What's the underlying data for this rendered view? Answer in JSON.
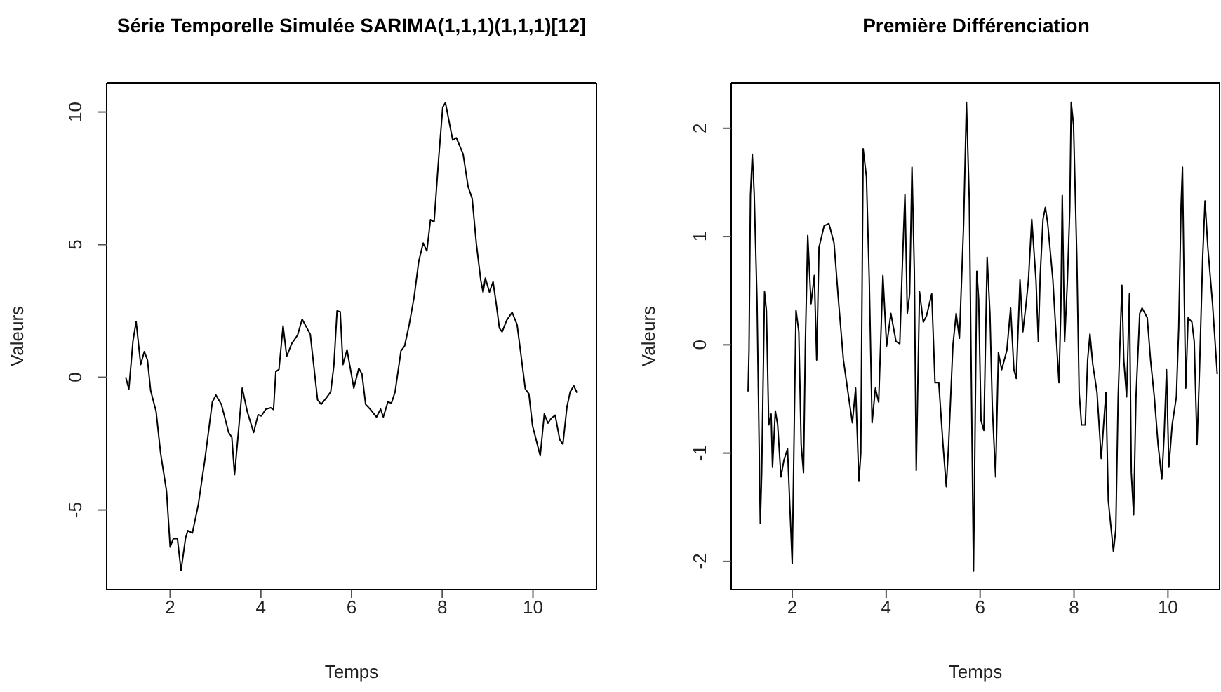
{
  "chart_data": [
    {
      "type": "line",
      "title": "Série Temporelle Simulée SARIMA(1,1,1)(1,1,1)[12]",
      "xlabel": "Temps",
      "ylabel": "Valeurs",
      "color": "#000000",
      "xlim": [
        0.6,
        11.4
      ],
      "ylim": [
        -8,
        11.1
      ],
      "xticks": [
        2,
        4,
        6,
        8,
        10
      ],
      "yticks": [
        -5,
        0,
        5,
        10
      ],
      "x": [
        1.02,
        1.09,
        1.18,
        1.25,
        1.35,
        1.43,
        1.5,
        1.57,
        1.69,
        1.79,
        1.92,
        2.0,
        2.07,
        2.16,
        2.24,
        2.34,
        2.39,
        2.49,
        2.62,
        2.77,
        2.93,
        3.01,
        3.13,
        3.29,
        3.36,
        3.42,
        3.49,
        3.59,
        3.7,
        3.84,
        3.94,
        4.01,
        4.11,
        4.22,
        4.28,
        4.33,
        4.4,
        4.49,
        4.57,
        4.68,
        4.81,
        4.91,
        5.09,
        5.25,
        5.33,
        5.45,
        5.54,
        5.61,
        5.68,
        5.75,
        5.81,
        5.9,
        6.05,
        6.16,
        6.23,
        6.31,
        6.41,
        6.55,
        6.64,
        6.7,
        6.8,
        6.88,
        6.96,
        7.09,
        7.17,
        7.27,
        7.38,
        7.48,
        7.58,
        7.66,
        7.74,
        7.82,
        7.92,
        8.01,
        8.07,
        8.18,
        8.23,
        8.31,
        8.46,
        8.57,
        8.66,
        8.75,
        8.85,
        8.9,
        8.95,
        9.04,
        9.12,
        9.19,
        9.26,
        9.32,
        9.42,
        9.54,
        9.65,
        9.75,
        9.83,
        9.91,
        9.99,
        10.16,
        10.25,
        10.33,
        10.4,
        10.49,
        10.59,
        10.66,
        10.75,
        10.82,
        10.9,
        10.97
      ],
      "values": [
        0,
        -0.44,
        1.36,
        2.1,
        0.48,
        0.97,
        0.65,
        -0.5,
        -1.29,
        -2.87,
        -4.29,
        -6.4,
        -6.08,
        -6.08,
        -7.28,
        -6.05,
        -5.78,
        -5.87,
        -4.81,
        -3.05,
        -0.93,
        -0.67,
        -1.02,
        -2.08,
        -2.26,
        -3.67,
        -2.35,
        -0.41,
        -1.29,
        -2.08,
        -1.41,
        -1.46,
        -1.2,
        -1.15,
        -1.22,
        0.21,
        0.3,
        1.94,
        0.79,
        1.27,
        1.59,
        2.19,
        1.62,
        -0.85,
        -1.02,
        -0.76,
        -0.55,
        0.44,
        2.5,
        2.47,
        0.48,
        1.04,
        -0.41,
        0.34,
        0.12,
        -1.02,
        -1.2,
        -1.5,
        -1.2,
        -1.5,
        -0.93,
        -0.97,
        -0.55,
        1.0,
        1.18,
        1.98,
        3.03,
        4.36,
        5.06,
        4.76,
        5.94,
        5.86,
        8.24,
        10.18,
        10.35,
        9.38,
        8.94,
        9.03,
        8.41,
        7.18,
        6.74,
        5.06,
        3.65,
        3.21,
        3.74,
        3.21,
        3.6,
        2.77,
        1.85,
        1.71,
        2.15,
        2.45,
        1.98,
        0.65,
        -0.44,
        -0.62,
        -1.82,
        -2.96,
        -1.38,
        -1.73,
        -1.55,
        -1.43,
        -2.35,
        -2.52,
        -1.11,
        -0.55,
        -0.32,
        -0.58
      ]
    },
    {
      "type": "line",
      "title": "Première Différenciation",
      "xlabel": "Temps",
      "ylabel": "Valeurs",
      "color": "#000000",
      "xlim": [
        0.7,
        11.1
      ],
      "ylim": [
        -2.26,
        2.42
      ],
      "xticks": [
        2,
        4,
        6,
        8,
        10
      ],
      "yticks": [
        -2,
        -1,
        0,
        1,
        2
      ],
      "x": [
        1.06,
        1.08,
        1.11,
        1.15,
        1.19,
        1.25,
        1.32,
        1.35,
        1.41,
        1.45,
        1.5,
        1.55,
        1.58,
        1.64,
        1.69,
        1.76,
        1.82,
        1.9,
        1.95,
        2.0,
        2.05,
        2.08,
        2.14,
        2.19,
        2.24,
        2.28,
        2.33,
        2.4,
        2.47,
        2.52,
        2.57,
        2.68,
        2.78,
        2.89,
        2.99,
        3.09,
        3.2,
        3.28,
        3.35,
        3.42,
        3.46,
        3.51,
        3.58,
        3.64,
        3.7,
        3.77,
        3.84,
        3.93,
        4.01,
        4.1,
        4.21,
        4.29,
        4.34,
        4.4,
        4.45,
        4.5,
        4.55,
        4.6,
        4.64,
        4.71,
        4.79,
        4.86,
        4.97,
        5.04,
        5.12,
        5.21,
        5.28,
        5.33,
        5.42,
        5.49,
        5.56,
        5.65,
        5.71,
        5.77,
        5.82,
        5.86,
        5.93,
        5.97,
        6.02,
        6.08,
        6.15,
        6.21,
        6.26,
        6.33,
        6.39,
        6.46,
        6.57,
        6.65,
        6.72,
        6.77,
        6.85,
        6.91,
        6.98,
        7.03,
        7.1,
        7.19,
        7.24,
        7.28,
        7.34,
        7.39,
        7.44,
        7.55,
        7.65,
        7.68,
        7.72,
        7.75,
        7.8,
        7.86,
        7.91,
        7.94,
        7.99,
        8.06,
        8.11,
        8.16,
        8.24,
        8.29,
        8.34,
        8.4,
        8.49,
        8.58,
        8.63,
        8.68,
        8.73,
        8.84,
        8.89,
        8.94,
        8.99,
        9.02,
        9.06,
        9.12,
        9.18,
        9.22,
        9.27,
        9.32,
        9.4,
        9.45,
        9.56,
        9.63,
        9.71,
        9.79,
        9.87,
        9.92,
        9.97,
        10.02,
        10.09,
        10.18,
        10.23,
        10.28,
        10.31,
        10.35,
        10.38,
        10.43,
        10.51,
        10.56,
        10.62,
        10.67,
        10.74,
        10.79,
        10.85,
        10.95,
        11.05
      ],
      "values": [
        -0.43,
        -0.05,
        1.38,
        1.76,
        1.4,
        0.42,
        -1.65,
        -1.18,
        0.49,
        0.32,
        -0.74,
        -0.64,
        -1.13,
        -0.61,
        -0.74,
        -1.22,
        -1.07,
        -0.96,
        -1.5,
        -2.02,
        -0.53,
        0.32,
        0.12,
        -0.92,
        -1.18,
        0.03,
        1.01,
        0.38,
        0.64,
        -0.14,
        0.9,
        1.1,
        1.12,
        0.94,
        0.38,
        -0.14,
        -0.48,
        -0.72,
        -0.4,
        -1.26,
        -1.0,
        1.81,
        1.55,
        0.6,
        -0.72,
        -0.4,
        -0.53,
        0.64,
        -0.01,
        0.29,
        0.03,
        0.01,
        0.68,
        1.39,
        0.29,
        0.47,
        1.64,
        0.68,
        -1.16,
        0.49,
        0.21,
        0.27,
        0.47,
        -0.35,
        -0.35,
        -0.92,
        -1.31,
        -0.92,
        -0.01,
        0.29,
        0.06,
        1.12,
        2.24,
        1.33,
        -0.57,
        -2.09,
        0.68,
        0.42,
        -0.7,
        -0.79,
        0.81,
        0.29,
        -0.57,
        -1.22,
        -0.07,
        -0.23,
        -0.05,
        0.34,
        -0.23,
        -0.31,
        0.6,
        0.12,
        0.38,
        0.6,
        1.16,
        0.6,
        0.03,
        0.64,
        1.16,
        1.27,
        1.12,
        0.6,
        -0.14,
        -0.35,
        0.34,
        1.38,
        0.03,
        0.6,
        1.25,
        2.24,
        2.03,
        0.81,
        -0.44,
        -0.74,
        -0.74,
        -0.14,
        0.1,
        -0.18,
        -0.44,
        -1.05,
        -0.74,
        -0.44,
        -1.44,
        -1.91,
        -1.7,
        -0.48,
        0.16,
        0.55,
        -0.14,
        -0.48,
        0.47,
        -1.18,
        -1.57,
        -0.48,
        0.29,
        0.34,
        0.25,
        -0.14,
        -0.48,
        -0.92,
        -1.24,
        -0.83,
        -0.23,
        -1.13,
        -0.74,
        -0.48,
        0.16,
        1.29,
        1.64,
        0.38,
        -0.4,
        0.25,
        0.21,
        0.03,
        -0.92,
        -0.27,
        0.81,
        1.33,
        0.9,
        0.38,
        -0.27
      ]
    }
  ]
}
